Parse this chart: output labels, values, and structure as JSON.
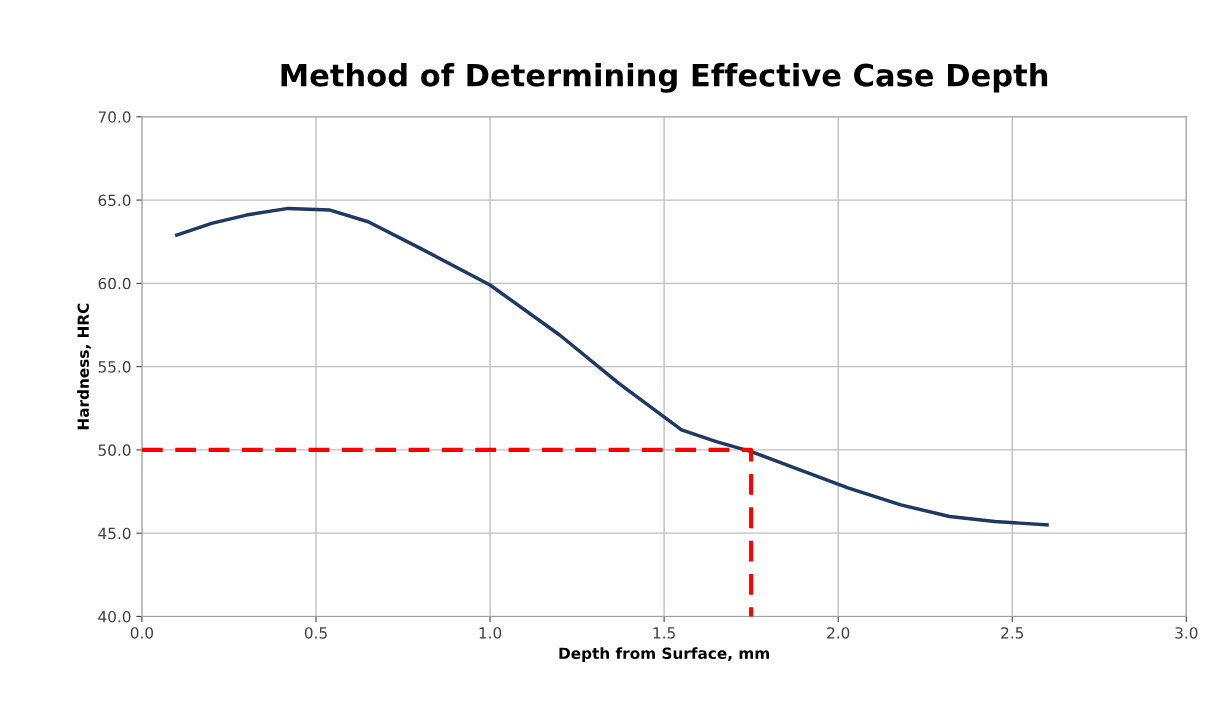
{
  "chart_data": {
    "type": "line",
    "title": "Method of Determining Effective Case Depth",
    "xlabel": "Depth from Surface, mm",
    "ylabel": "Hardness, HRC",
    "series": [
      {
        "color": "#1f3864",
        "line_style": "solid",
        "x": [
          0.1,
          0.2,
          0.3,
          0.42,
          0.54,
          0.65,
          0.8,
          1.0,
          1.2,
          1.37,
          1.55,
          1.65,
          1.75,
          1.89,
          2.03,
          2.18,
          2.32,
          2.45,
          2.6
        ],
        "values": [
          62.9,
          63.6,
          64.1,
          64.5,
          64.4,
          63.7,
          62.1,
          59.9,
          56.9,
          54.0,
          51.2,
          50.5,
          49.9,
          48.8,
          47.7,
          46.7,
          46.0,
          45.7,
          45.5
        ]
      },
      {
        "color": "#ff0000",
        "line_style": "dashed",
        "x": [
          0.0,
          1.75,
          1.75
        ],
        "values": [
          50.0,
          50.0,
          40.0
        ]
      }
    ],
    "xlim": [
      0,
      3
    ],
    "ylim": [
      40,
      70
    ],
    "xticks": [
      {
        "value": 0,
        "label": "0.0"
      },
      {
        "value": 0.5,
        "label": "0.5"
      },
      {
        "value": 1,
        "label": "1.0"
      },
      {
        "value": 1.5,
        "label": "1.5"
      },
      {
        "value": 2,
        "label": "2.0"
      },
      {
        "value": 2.5,
        "label": "2.5"
      },
      {
        "value": 3,
        "label": "3.0"
      }
    ],
    "yticks": [
      {
        "value": 40,
        "label": "40.0"
      },
      {
        "value": 45,
        "label": "45.0"
      },
      {
        "value": 50,
        "label": "50.0"
      },
      {
        "value": 55,
        "label": "55.0"
      },
      {
        "value": 60,
        "label": "60.0"
      },
      {
        "value": 65,
        "label": "65.0"
      },
      {
        "value": 70,
        "label": "70.0"
      }
    ],
    "grid": true,
    "legend": false,
    "marker": "none"
  }
}
